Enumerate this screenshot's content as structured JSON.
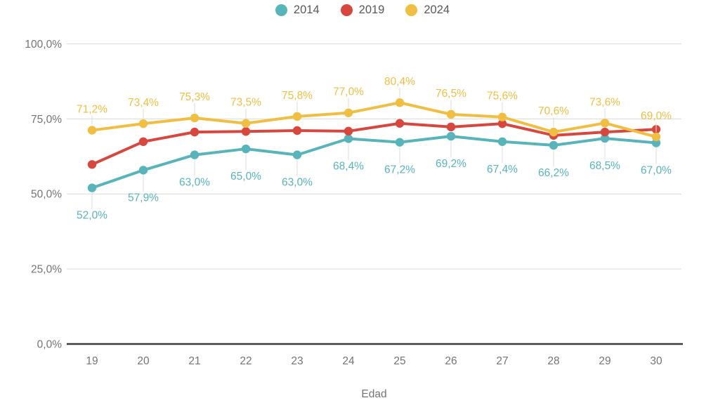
{
  "legend": {
    "items": [
      {
        "label": "2014",
        "color": "#58b4bb"
      },
      {
        "label": "2019",
        "color": "#d8473d"
      },
      {
        "label": "2024",
        "color": "#f0bf42"
      }
    ]
  },
  "chart_data": {
    "type": "line",
    "x": [
      19,
      20,
      21,
      22,
      23,
      24,
      25,
      26,
      27,
      28,
      29,
      30
    ],
    "x_tick_labels": [
      "19",
      "20",
      "21",
      "22",
      "23",
      "24",
      "25",
      "26",
      "27",
      "28",
      "29",
      "30"
    ],
    "xlabel": "Edad",
    "ylim": [
      0,
      100
    ],
    "y_ticks": [
      0,
      25,
      50,
      75,
      100
    ],
    "y_tick_labels": [
      "0,0%",
      "25,0%",
      "50,0%",
      "75,0%",
      "100,0%"
    ],
    "grid": "horizontal-only",
    "legend_position": "top-center",
    "series": [
      {
        "name": "2014",
        "color": "#58b4bb",
        "values": [
          52.0,
          57.9,
          63.0,
          65.0,
          63.0,
          68.4,
          67.2,
          69.2,
          67.4,
          66.2,
          68.5,
          67.0
        ],
        "point_labels": [
          "52,0%",
          "57,9%",
          "63,0%",
          "65,0%",
          "63,0%",
          "68,4%",
          "67,2%",
          "69,2%",
          "67,4%",
          "66,2%",
          "68,5%",
          "67,0%"
        ],
        "label_position": "below"
      },
      {
        "name": "2019",
        "color": "#d8473d",
        "values": [
          59.8,
          67.4,
          70.6,
          70.8,
          71.1,
          70.9,
          73.5,
          72.3,
          73.4,
          69.5,
          70.6,
          71.5
        ],
        "point_labels": [],
        "label_position": "none"
      },
      {
        "name": "2024",
        "color": "#f0bf42",
        "values": [
          71.2,
          73.4,
          75.3,
          73.5,
          75.8,
          77.0,
          80.4,
          76.5,
          75.6,
          70.6,
          73.6,
          69.0
        ],
        "point_labels": [
          "71,2%",
          "73,4%",
          "75,3%",
          "73,5%",
          "75,8%",
          "77,0%",
          "80,4%",
          "76,5%",
          "75,6%",
          "70,6%",
          "73,6%",
          "69,0%"
        ],
        "label_position": "above"
      }
    ]
  },
  "styles": {
    "grid_color": "#d9d9d9",
    "axis_color": "#3b3b3b",
    "tick_text_color": "#757575",
    "legend_text_color": "#595959",
    "leader_line_color": "#dcdcdc"
  }
}
